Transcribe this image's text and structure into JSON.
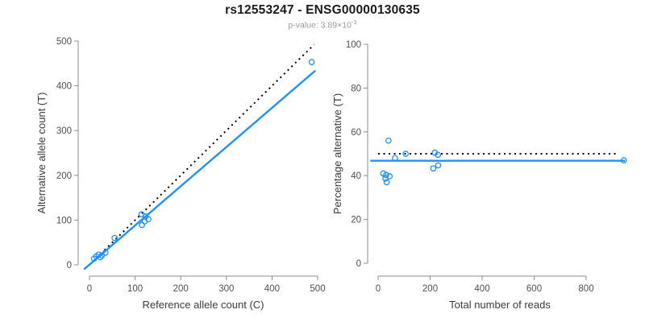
{
  "header": {
    "title": "rs12553247 - ENSG00000130635",
    "pvalue_prefix": "p-value: 3.89×10",
    "pvalue_exponent": "-3"
  },
  "colors": {
    "point": "#1E90FF",
    "fit_line": "#1E90FF",
    "identity_line": "#000000",
    "axis": "#8c8c8c",
    "tick_label": "#4f4f4f",
    "axis_label": "#3a3a3a",
    "subtitle": "#9a9a9a",
    "title": "#1a1a1a"
  },
  "chart_data": [
    {
      "type": "scatter",
      "name": "allele-counts",
      "xlabel": "Reference allele count (C)",
      "ylabel": "Alternative allele count (T)",
      "xlim": [
        0,
        500
      ],
      "ylim": [
        0,
        500
      ],
      "xticks": [
        0,
        100,
        200,
        300,
        400,
        500
      ],
      "yticks": [
        0,
        100,
        200,
        300,
        400,
        500
      ],
      "grid": false,
      "legend": false,
      "points": [
        [
          10,
          14
        ],
        [
          15,
          19
        ],
        [
          20,
          23
        ],
        [
          24,
          17
        ],
        [
          27,
          21
        ],
        [
          35,
          27
        ],
        [
          55,
          60
        ],
        [
          114,
          113
        ],
        [
          123,
          108
        ],
        [
          129,
          102
        ],
        [
          121,
          97
        ],
        [
          115,
          89
        ],
        [
          487,
          453
        ]
      ],
      "lines": [
        {
          "name": "identity",
          "style": "dotted",
          "color": "#000000",
          "from": [
            0,
            0
          ],
          "to": [
            492,
            492
          ]
        },
        {
          "name": "fit",
          "style": "solid",
          "color": "#1E90FF",
          "from": [
            -12,
            -10
          ],
          "to": [
            495,
            434
          ]
        }
      ]
    },
    {
      "type": "scatter",
      "name": "percentage-alternative",
      "xlabel": "Total number of reads",
      "ylabel": "Percentage alternative (T)",
      "xlim": [
        0,
        950
      ],
      "ylim": [
        0,
        100
      ],
      "xticks": [
        0,
        200,
        400,
        600,
        800
      ],
      "yticks": [
        0,
        20,
        40,
        60,
        80,
        100
      ],
      "grid": false,
      "legend": false,
      "points": [
        [
          40,
          56
        ],
        [
          20,
          41
        ],
        [
          31,
          40.3
        ],
        [
          44,
          39.7
        ],
        [
          28,
          38.7
        ],
        [
          33,
          37
        ],
        [
          65,
          48
        ],
        [
          106,
          50
        ],
        [
          218,
          50.5
        ],
        [
          230,
          49.5
        ],
        [
          212,
          43.3
        ],
        [
          231,
          44.7
        ],
        [
          945,
          47
        ]
      ],
      "lines": [
        {
          "name": "expected-50pct",
          "style": "dotted",
          "color": "#000000",
          "from": [
            0,
            50
          ],
          "to": [
            920,
            50
          ]
        },
        {
          "name": "mean",
          "style": "solid",
          "color": "#1E90FF",
          "from": [
            -30,
            46.8
          ],
          "to": [
            950,
            46.8
          ]
        }
      ]
    }
  ]
}
